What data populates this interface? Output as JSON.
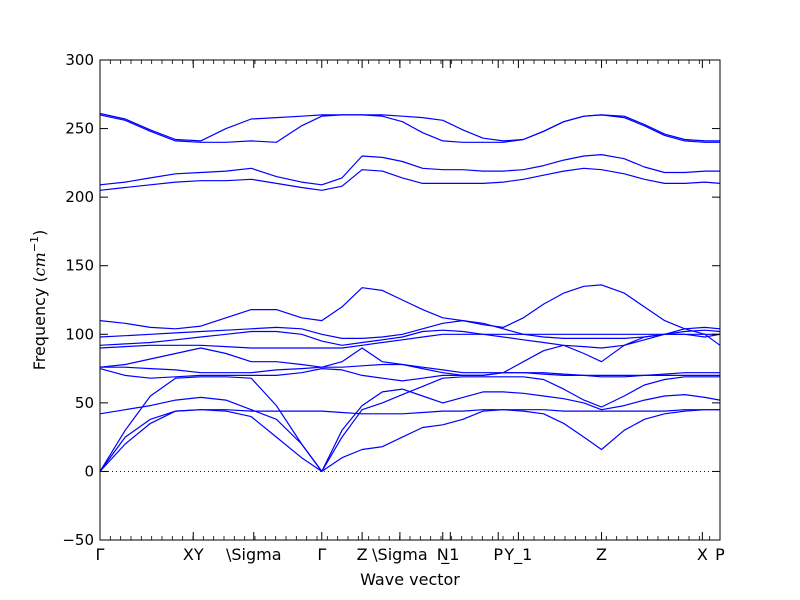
{
  "chart_data": {
    "type": "line",
    "xlabel": "Wave vector",
    "ylabel_text": "Frequency (",
    "ylabel_unit_base": "cm",
    "ylabel_unit_exp": "−1",
    "ylabel_close": ")",
    "ylim": [
      -50,
      300
    ],
    "yticks": [
      -50,
      0,
      50,
      100,
      150,
      200,
      250,
      300
    ],
    "xlim": [
      0,
      12.3
    ],
    "xticks": [
      {
        "x": 0.0,
        "label": "Γ"
      },
      {
        "x": 1.85,
        "label": "XY"
      },
      {
        "x": 3.05,
        "label": "\\Sigma"
      },
      {
        "x": 4.4,
        "label": "Γ"
      },
      {
        "x": 5.2,
        "label": "Z"
      },
      {
        "x": 5.95,
        "label": "\\Sigma"
      },
      {
        "x": 6.8,
        "label": "N"
      },
      {
        "x": 6.95,
        "label": "_1"
      },
      {
        "x": 7.9,
        "label": "P"
      },
      {
        "x": 8.3,
        "label": "Y_1"
      },
      {
        "x": 9.95,
        "label": "Z"
      },
      {
        "x": 11.95,
        "label": "X"
      },
      {
        "x": 12.3,
        "label": "P"
      }
    ],
    "zero_line": true,
    "line_color": "#0000ff",
    "series": [
      {
        "x": [
          0,
          0.5,
          1.0,
          1.5,
          2.0,
          2.5,
          3.0,
          3.5,
          4.0,
          4.4,
          4.8,
          5.2,
          5.6,
          6.0,
          6.4,
          6.8,
          7.2,
          7.6,
          8.0,
          8.4,
          8.8,
          9.2,
          9.6,
          9.95,
          10.4,
          10.8,
          11.2,
          11.6,
          12.0,
          12.3
        ],
        "y": [
          0,
          25,
          38,
          44,
          45,
          45,
          44,
          44,
          44,
          44,
          43,
          42,
          42,
          42,
          43,
          44,
          44,
          45,
          45,
          45,
          45,
          44,
          44,
          44,
          44,
          44,
          44,
          45,
          45,
          45
        ]
      },
      {
        "x": [
          0,
          0.5,
          1.0,
          1.5,
          2.0,
          2.5,
          3.0,
          3.5,
          4.0,
          4.4,
          4.8,
          5.2,
          5.6,
          6.0,
          6.4,
          6.8,
          7.2,
          7.6,
          8.0,
          8.4,
          8.8,
          9.2,
          9.6,
          9.95,
          10.4,
          10.8,
          11.2,
          11.6,
          12.0,
          12.3
        ],
        "y": [
          0,
          20,
          35,
          44,
          45,
          44,
          40,
          25,
          10,
          0,
          10,
          16,
          18,
          25,
          32,
          34,
          38,
          44,
          45,
          44,
          42,
          35,
          25,
          16,
          30,
          38,
          42,
          44,
          45,
          45
        ]
      },
      {
        "x": [
          0,
          0.5,
          1.0,
          1.5,
          2.0,
          2.5,
          3.0,
          3.5,
          4.0,
          4.4,
          4.8,
          5.2,
          5.6,
          6.0,
          6.4,
          6.8,
          7.2,
          7.6,
          8.0,
          8.4,
          8.8,
          9.2,
          9.6,
          9.95,
          10.4,
          10.8,
          11.2,
          11.6,
          12.0,
          12.3
        ],
        "y": [
          0,
          30,
          55,
          68,
          69,
          69,
          68,
          48,
          20,
          0,
          25,
          45,
          50,
          56,
          62,
          68,
          69,
          69,
          69,
          69,
          67,
          60,
          52,
          47,
          55,
          63,
          67,
          69,
          69,
          69
        ]
      },
      {
        "x": [
          0,
          0.5,
          1.0,
          1.5,
          2.0,
          2.5,
          3.0,
          3.5,
          4.0,
          4.4,
          4.8,
          5.2,
          5.6,
          6.0,
          6.4,
          6.8,
          7.2,
          7.6,
          8.0,
          8.4,
          8.8,
          9.2,
          9.6,
          9.95,
          10.4,
          10.8,
          11.2,
          11.6,
          12.0,
          12.3
        ],
        "y": [
          42,
          45,
          48,
          52,
          54,
          52,
          45,
          38,
          20,
          0,
          30,
          48,
          58,
          60,
          55,
          50,
          54,
          58,
          58,
          57,
          55,
          53,
          50,
          45,
          48,
          52,
          55,
          56,
          54,
          52
        ]
      },
      {
        "x": [
          0,
          0.5,
          1.0,
          1.5,
          2.0,
          2.5,
          3.0,
          3.5,
          4.0,
          4.4,
          4.8,
          5.2,
          5.6,
          6.0,
          6.4,
          6.8,
          7.2,
          7.6,
          8.0,
          8.4,
          8.8,
          9.2,
          9.6,
          9.95,
          10.4,
          10.8,
          11.2,
          11.6,
          12.0,
          12.3
        ],
        "y": [
          75,
          70,
          68,
          69,
          70,
          70,
          70,
          70,
          72,
          75,
          74,
          70,
          68,
          66,
          68,
          70,
          70,
          70,
          72,
          72,
          72,
          71,
          70,
          69,
          69,
          70,
          71,
          72,
          72,
          72
        ]
      },
      {
        "x": [
          0,
          0.5,
          1.0,
          1.5,
          2.0,
          2.5,
          3.0,
          3.5,
          4.0,
          4.4,
          4.8,
          5.2,
          5.6,
          6.0,
          6.4,
          6.8,
          7.2,
          7.6,
          8.0,
          8.4,
          8.8,
          9.2,
          9.6,
          9.95,
          10.4,
          10.8,
          11.2,
          11.6,
          12.0,
          12.3
        ],
        "y": [
          76,
          76,
          75,
          74,
          72,
          72,
          72,
          74,
          75,
          76,
          76,
          77,
          78,
          78,
          76,
          74,
          72,
          72,
          72,
          72,
          71,
          70,
          70,
          70,
          70,
          70,
          70,
          70,
          70,
          70
        ]
      },
      {
        "x": [
          0,
          0.5,
          1.0,
          1.5,
          2.0,
          2.5,
          3.0,
          3.5,
          4.0,
          4.4,
          4.8,
          5.2,
          5.6,
          6.0,
          6.4,
          6.8,
          7.2,
          7.6,
          8.0,
          8.4,
          8.8,
          9.2,
          9.6,
          9.95,
          10.4,
          10.8,
          11.2,
          11.6,
          12.0,
          12.3
        ],
        "y": [
          76,
          78,
          82,
          86,
          90,
          86,
          80,
          80,
          78,
          76,
          80,
          90,
          80,
          78,
          75,
          72,
          70,
          70,
          72,
          80,
          88,
          92,
          86,
          80,
          92,
          98,
          100,
          100,
          98,
          100
        ]
      },
      {
        "x": [
          0,
          0.5,
          1.0,
          1.5,
          2.0,
          2.5,
          3.0,
          3.5,
          4.0,
          4.4,
          4.8,
          5.2,
          5.6,
          6.0,
          6.4,
          6.8,
          7.2,
          7.6,
          8.0,
          8.4,
          8.8,
          9.2,
          9.6,
          9.95,
          10.4,
          10.8,
          11.2,
          11.6,
          12.0,
          12.3
        ],
        "y": [
          90,
          91,
          92,
          92,
          92,
          91,
          90,
          90,
          90,
          90,
          90,
          92,
          94,
          96,
          98,
          100,
          100,
          100,
          100,
          100,
          100,
          100,
          100,
          100,
          100,
          100,
          100,
          100,
          100,
          100
        ]
      },
      {
        "x": [
          0,
          0.5,
          1.0,
          1.5,
          2.0,
          2.5,
          3.0,
          3.5,
          4.0,
          4.4,
          4.8,
          5.2,
          5.6,
          6.0,
          6.4,
          6.8,
          7.2,
          7.6,
          8.0,
          8.4,
          8.8,
          9.2,
          9.6,
          9.95,
          10.4,
          10.8,
          11.2,
          11.6,
          12.0,
          12.3
        ],
        "y": [
          92,
          93,
          94,
          96,
          98,
          100,
          102,
          102,
          100,
          95,
          92,
          94,
          96,
          98,
          102,
          103,
          102,
          100,
          98,
          96,
          94,
          92,
          91,
          90,
          92,
          96,
          100,
          104,
          105,
          104
        ]
      },
      {
        "x": [
          0,
          0.5,
          1.0,
          1.5,
          2.0,
          2.5,
          3.0,
          3.5,
          4.0,
          4.4,
          4.8,
          5.2,
          5.6,
          6.0,
          6.4,
          6.8,
          7.2,
          7.6,
          8.0,
          8.4,
          8.8,
          9.2,
          9.6,
          9.95,
          10.4,
          10.8,
          11.2,
          11.6,
          12.0,
          12.3
        ],
        "y": [
          98,
          99,
          100,
          101,
          102,
          103,
          104,
          105,
          104,
          100,
          97,
          97,
          98,
          100,
          104,
          108,
          110,
          108,
          104,
          100,
          98,
          97,
          97,
          97,
          97,
          98,
          100,
          102,
          103,
          102
        ]
      },
      {
        "x": [
          0,
          0.5,
          1.0,
          1.5,
          2.0,
          2.5,
          3.0,
          3.5,
          4.0,
          4.4,
          4.8,
          5.2,
          5.6,
          6.0,
          6.4,
          6.8,
          7.2,
          7.6,
          8.0,
          8.4,
          8.8,
          9.2,
          9.6,
          9.95,
          10.4,
          10.8,
          11.2,
          11.6,
          12.0,
          12.3
        ],
        "y": [
          110,
          108,
          105,
          104,
          106,
          112,
          118,
          118,
          112,
          110,
          120,
          134,
          132,
          125,
          118,
          112,
          110,
          107,
          105,
          112,
          122,
          130,
          135,
          136,
          130,
          120,
          110,
          104,
          100,
          92
        ]
      },
      {
        "x": [
          0,
          0.5,
          1.0,
          1.5,
          2.0,
          2.5,
          3.0,
          3.5,
          4.0,
          4.4,
          4.8,
          5.2,
          5.6,
          6.0,
          6.4,
          6.8,
          7.2,
          7.6,
          8.0,
          8.4,
          8.8,
          9.2,
          9.6,
          9.95,
          10.4,
          10.8,
          11.2,
          11.6,
          12.0,
          12.3
        ],
        "y": [
          205,
          207,
          209,
          211,
          212,
          212,
          213,
          210,
          207,
          205,
          208,
          220,
          219,
          214,
          210,
          210,
          210,
          210,
          211,
          213,
          216,
          219,
          221,
          220,
          217,
          213,
          210,
          210,
          211,
          210
        ]
      },
      {
        "x": [
          0,
          0.5,
          1.0,
          1.5,
          2.0,
          2.5,
          3.0,
          3.5,
          4.0,
          4.4,
          4.8,
          5.2,
          5.6,
          6.0,
          6.4,
          6.8,
          7.2,
          7.6,
          8.0,
          8.4,
          8.8,
          9.2,
          9.6,
          9.95,
          10.4,
          10.8,
          11.2,
          11.6,
          12.0,
          12.3
        ],
        "y": [
          209,
          211,
          214,
          217,
          218,
          219,
          221,
          215,
          211,
          209,
          214,
          230,
          229,
          226,
          221,
          220,
          220,
          219,
          219,
          220,
          223,
          227,
          230,
          231,
          228,
          222,
          218,
          218,
          219,
          219
        ]
      },
      {
        "x": [
          0,
          0.5,
          1.0,
          1.5,
          2.0,
          2.5,
          3.0,
          3.5,
          4.0,
          4.4,
          4.8,
          5.2,
          5.6,
          6.0,
          6.4,
          6.8,
          7.2,
          7.6,
          8.0,
          8.4,
          8.8,
          9.2,
          9.6,
          9.95,
          10.4,
          10.8,
          11.2,
          11.6,
          12.0,
          12.3
        ],
        "y": [
          260,
          256,
          248,
          241,
          240,
          240,
          241,
          240,
          252,
          259,
          260,
          260,
          259,
          255,
          247,
          241,
          240,
          240,
          240,
          242,
          248,
          255,
          259,
          260,
          258,
          252,
          245,
          241,
          240,
          240
        ]
      },
      {
        "x": [
          0,
          0.5,
          1.0,
          1.5,
          2.0,
          2.5,
          3.0,
          3.5,
          4.0,
          4.4,
          4.8,
          5.2,
          5.6,
          6.0,
          6.4,
          6.8,
          7.2,
          7.6,
          8.0,
          8.4,
          8.8,
          9.2,
          9.6,
          9.95,
          10.4,
          10.8,
          11.2,
          11.6,
          12.0,
          12.3
        ],
        "y": [
          261,
          257,
          249,
          242,
          241,
          250,
          257,
          258,
          259,
          260,
          260,
          260,
          260,
          259,
          258,
          256,
          249,
          243,
          241,
          242,
          248,
          255,
          259,
          260,
          259,
          253,
          246,
          242,
          241,
          241
        ]
      }
    ]
  }
}
